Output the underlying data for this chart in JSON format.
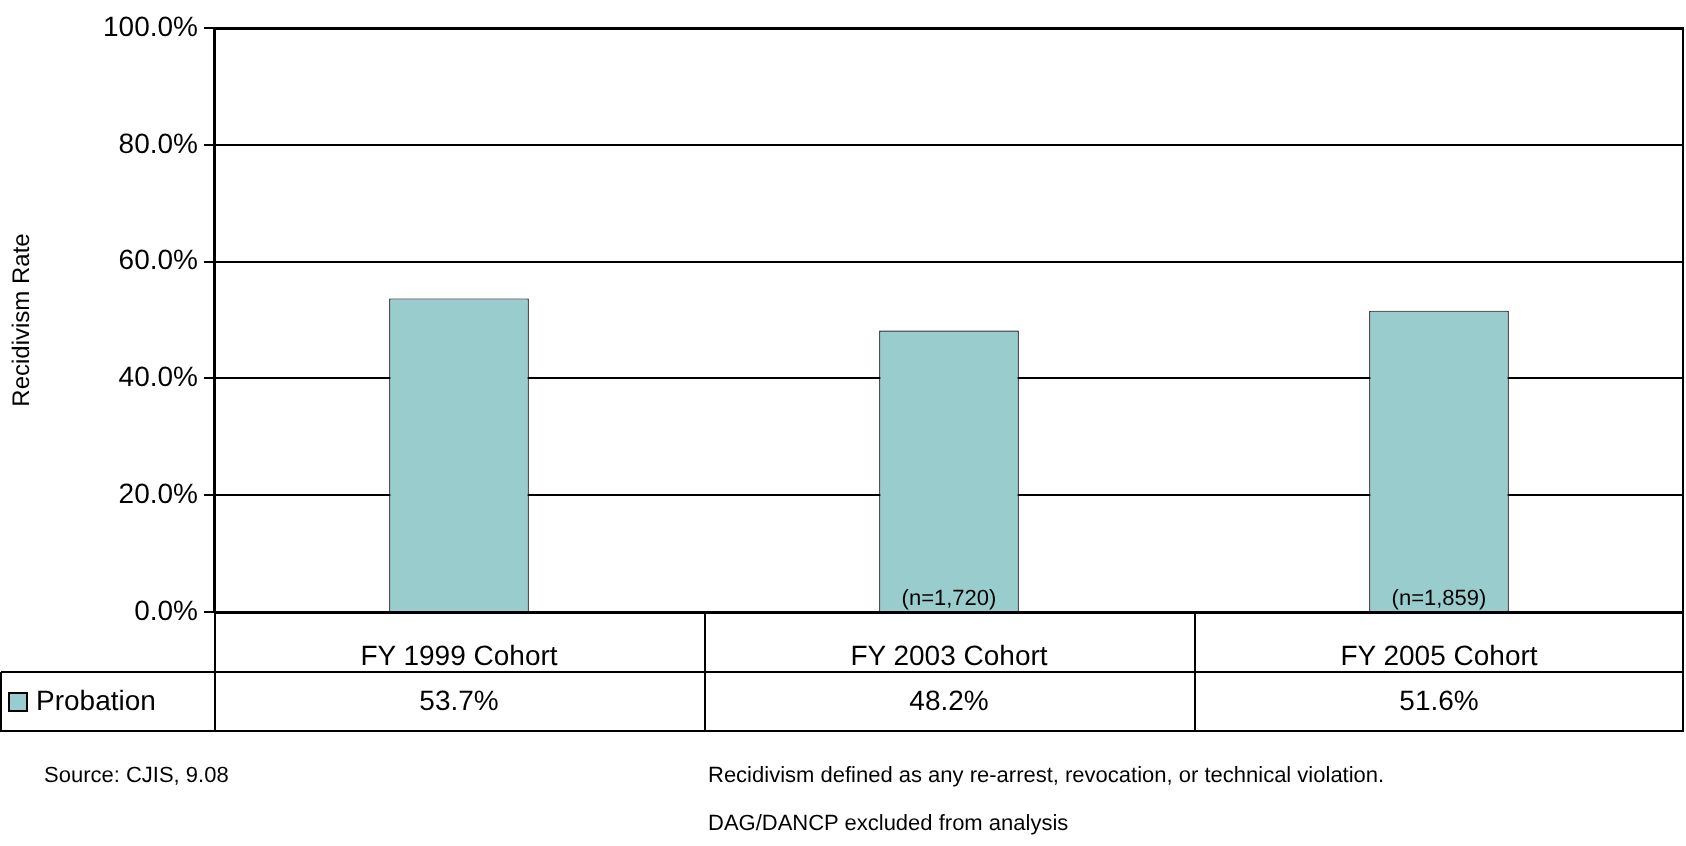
{
  "chart_data": {
    "type": "bar",
    "ylabel": "Recidivism Rate",
    "categories": [
      "FY 1999 Cohort",
      "FY 2003 Cohort",
      "FY 2005 Cohort"
    ],
    "series": [
      {
        "name": "Probation",
        "color": "#99cccc",
        "values": [
          53.7,
          48.2,
          51.6
        ],
        "value_labels": [
          "53.7%",
          "48.2%",
          "51.6%"
        ]
      }
    ],
    "ylim": [
      0,
      100
    ],
    "yticks": [
      {
        "value": 0,
        "label": "0.0%"
      },
      {
        "value": 20,
        "label": "20.0%"
      },
      {
        "value": 40,
        "label": "40.0%"
      },
      {
        "value": 60,
        "label": "60.0%"
      },
      {
        "value": 80,
        "label": "80.0%"
      },
      {
        "value": 100,
        "label": "100.0%"
      }
    ],
    "grid": "y",
    "legend": "bottom",
    "annotations": [
      {
        "text": "(n=1,720)",
        "x": "FY 2003 Cohort",
        "y": 0
      },
      {
        "text": "(n=1,859)",
        "x": "FY 2005 Cohort",
        "y": 0
      },
      "Source: CJIS, 9.08",
      "Recidivism defined as any re-arrest, revocation, or technical violation.",
      "DAG/DANCP excluded from analysis"
    ]
  }
}
